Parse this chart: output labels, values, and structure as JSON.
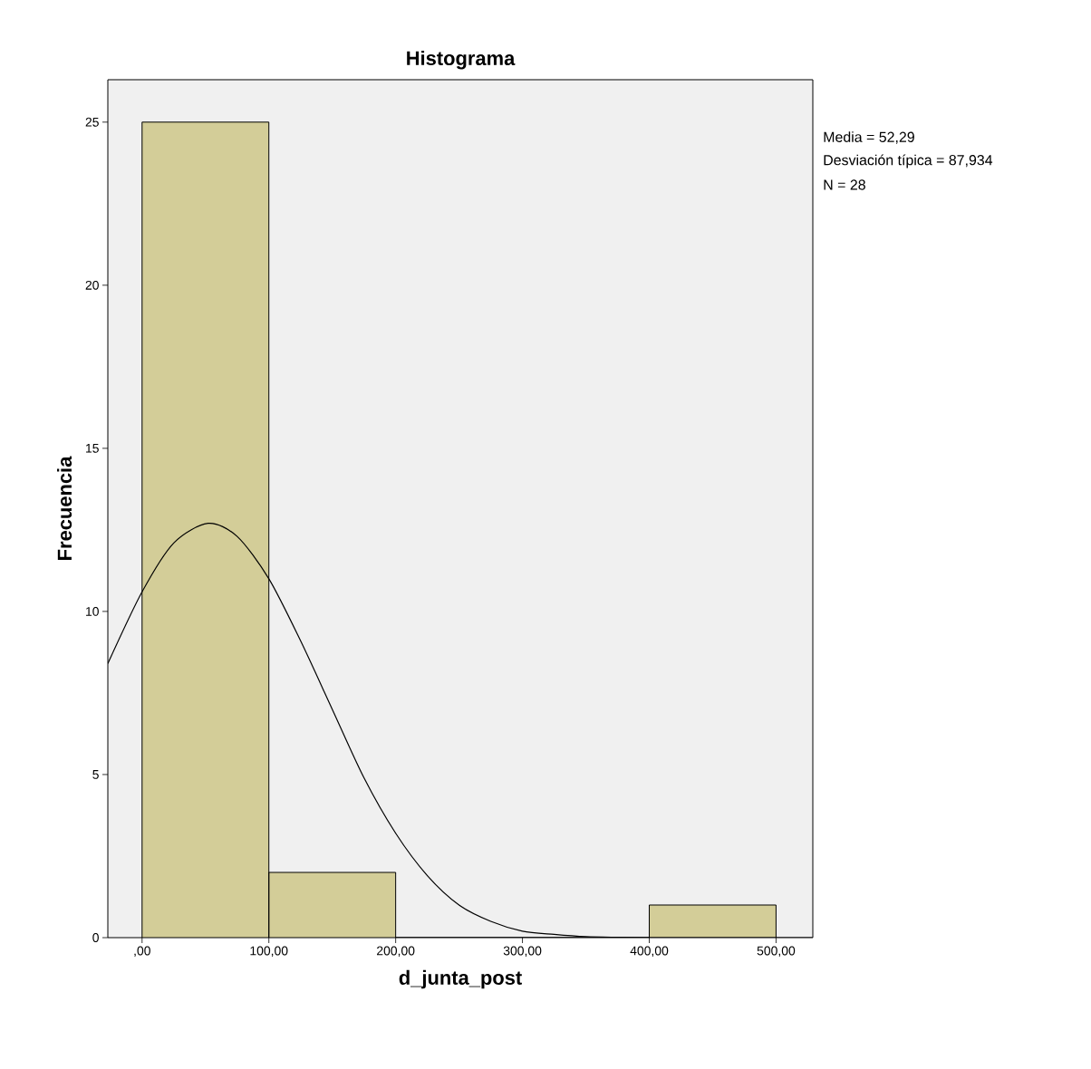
{
  "chart_data": {
    "type": "histogram",
    "title": "Histograma",
    "xlabel": "d_junta_post",
    "ylabel": "Frecuencia",
    "bins": [
      0,
      100,
      200,
      300,
      400,
      500
    ],
    "values": [
      25,
      2,
      0,
      0,
      1
    ],
    "color": "#d3cd98",
    "series": [
      {
        "type": "line",
        "color": "#000000",
        "x": [
          -27,
          0,
          25,
          52,
          75,
          100,
          125,
          150,
          175,
          200,
          225,
          250,
          275,
          300,
          325,
          350,
          375,
          400,
          450,
          529
        ],
        "values": [
          8.4,
          10.6,
          12.1,
          12.7,
          12.3,
          11.0,
          9.1,
          7.0,
          4.9,
          3.2,
          1.9,
          1.0,
          0.5,
          0.2,
          0.1,
          0.03,
          0.01,
          0,
          0,
          0
        ]
      }
    ],
    "xlim": [
      -27,
      529
    ],
    "ylim": [
      0,
      26.3
    ],
    "xticks": [
      {
        "value": 0,
        "label": ",00"
      },
      {
        "value": 100,
        "label": "100,00"
      },
      {
        "value": 200,
        "label": "200,00"
      },
      {
        "value": 300,
        "label": "300,00"
      },
      {
        "value": 400,
        "label": "400,00"
      },
      {
        "value": 500,
        "label": "500,00"
      }
    ],
    "yticks": [
      0,
      5,
      10,
      15,
      20,
      25
    ],
    "annotations": [
      "Media = 52,29",
      "Desviación típica = 87,934",
      "N = 28"
    ],
    "grid": false
  }
}
